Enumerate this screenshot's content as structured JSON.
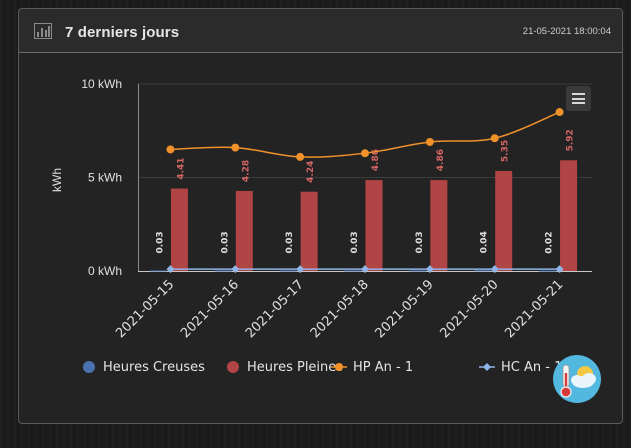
{
  "header": {
    "title": "7 derniers jours",
    "timestamp": "21-05-2021 18:00:04",
    "icon": "bar-chart-icon"
  },
  "colors": {
    "heures_creuses": "#4a72ae",
    "heures_pleines": "#b14444",
    "hp_an_1": "#f0912a",
    "hc_an_1": "#8fb5e8",
    "label_hp": "#d46565",
    "label_hc": "#dddddd",
    "axis_text": "#e0e0e0"
  },
  "legend": {
    "items": [
      {
        "name": "Heures Creuses",
        "symbol": "circle"
      },
      {
        "name": "Heures Pleines",
        "symbol": "circle"
      },
      {
        "name": "HP An - 1",
        "symbol": "line-circle"
      },
      {
        "name": "HC An - 1",
        "symbol": "line-diamond"
      }
    ]
  },
  "chart_data": {
    "type": "bar",
    "categories": [
      "2021-05-15",
      "2021-05-16",
      "2021-05-17",
      "2021-05-18",
      "2021-05-19",
      "2021-05-20",
      "2021-05-21"
    ],
    "series": [
      {
        "name": "Heures Creuses",
        "type": "bar",
        "values": [
          0.03,
          0.03,
          0.03,
          0.03,
          0.03,
          0.04,
          0.02
        ],
        "labels": [
          "0.03",
          "0.03",
          "0.03",
          "0.03",
          "0.03",
          "0.04",
          "0.02"
        ]
      },
      {
        "name": "Heures Pleines",
        "type": "bar",
        "values": [
          4.41,
          4.28,
          4.24,
          4.86,
          4.86,
          5.35,
          5.92
        ],
        "labels": [
          "4.41",
          "4.28",
          "4.24",
          "4.86",
          "4.86",
          "5.35",
          "5.92"
        ]
      },
      {
        "name": "HP An - 1",
        "type": "line",
        "values": [
          6.5,
          6.6,
          6.1,
          6.3,
          6.9,
          7.1,
          8.5
        ]
      },
      {
        "name": "HC An - 1",
        "type": "line",
        "values": [
          0.05,
          0.05,
          0.05,
          0.05,
          0.05,
          0.05,
          0.05
        ]
      }
    ],
    "xlabel": "",
    "ylabel": "kWh",
    "ylim": [
      0,
      10
    ],
    "yticks": [
      {
        "value": 0,
        "label": "0 kWh"
      },
      {
        "value": 5,
        "label": "5 kWh"
      },
      {
        "value": 10,
        "label": "10 kWh"
      }
    ],
    "grid": true,
    "legend_position": "bottom"
  }
}
